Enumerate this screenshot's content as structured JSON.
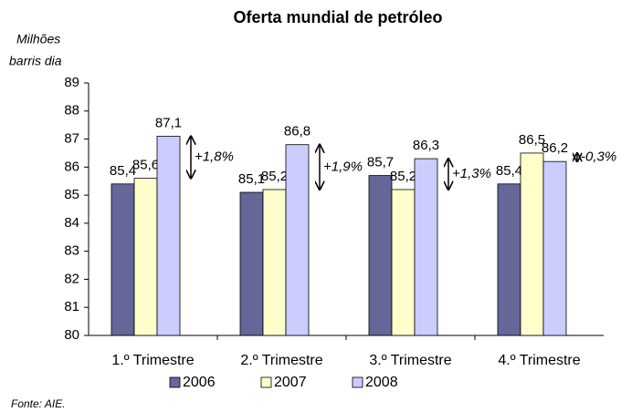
{
  "chart_data": {
    "type": "bar",
    "title": "Oferta mundial de petróleo",
    "y_label": [
      "Milhões",
      "barris dia"
    ],
    "categories": [
      "1.º Trimestre",
      "2.º Trimestre",
      "3.º Trimestre",
      "4.º Trimestre"
    ],
    "series": [
      {
        "name": "2006",
        "color": "#666699",
        "values": [
          85.4,
          85.1,
          85.7,
          85.4
        ],
        "value_labels": [
          "85,4",
          "85,1",
          "85,7",
          "85,4"
        ]
      },
      {
        "name": "2007",
        "color": "#ffffcc",
        "values": [
          85.6,
          85.2,
          85.2,
          86.5
        ],
        "value_labels": [
          "85,6",
          "85,2",
          "85,2",
          "86,5"
        ]
      },
      {
        "name": "2008",
        "color": "#ccccff",
        "values": [
          87.1,
          86.8,
          86.3,
          86.2
        ],
        "value_labels": [
          "87,1",
          "86,8",
          "86,3",
          "86,2"
        ]
      }
    ],
    "annotations": [
      "+1,8%",
      "+1,9%",
      "+1,3%",
      "-0,3%"
    ],
    "ylim": [
      80,
      89
    ],
    "yticks": [
      80,
      81,
      82,
      83,
      84,
      85,
      86,
      87,
      88,
      89
    ],
    "grid": false,
    "legend": "bottom",
    "source": "Fonte: AIE."
  }
}
